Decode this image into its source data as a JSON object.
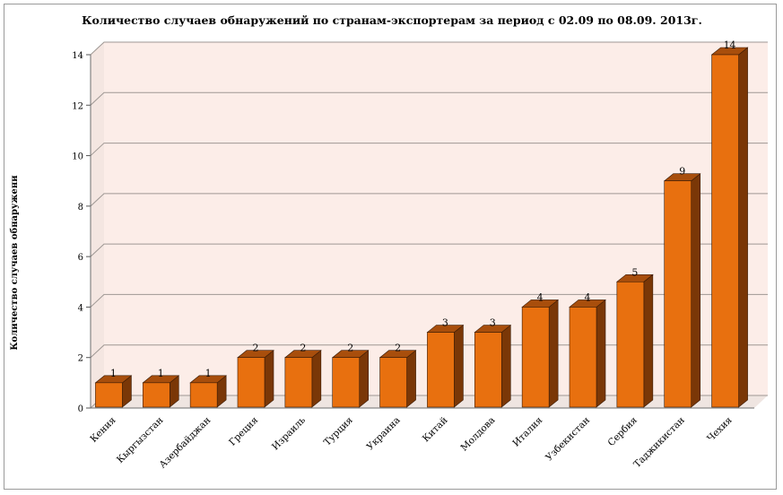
{
  "colors": {
    "plot_back": "#FCEDE8",
    "plot_floor": "#EFE5E1",
    "plot_side": "#F4E6E1",
    "grid": "#9E9793",
    "bar_front": "#E8700F",
    "bar_top": "#A84E0C",
    "bar_side": "#7A3707",
    "bar_edge": "#3A1A04"
  },
  "chart_data": {
    "type": "bar",
    "title": "Количество случаев обнаружений по странам-экспортерам за период с 02.09 по 08.09. 2013г.",
    "xlabel": "",
    "ylabel": "Количество случаев обнаружени",
    "ylim": [
      0,
      14
    ],
    "y_ticks": [
      "0",
      "2",
      "4",
      "6",
      "8",
      "10",
      "12",
      "14"
    ],
    "grid": true,
    "legend": "none",
    "style": "3d-column",
    "categories": [
      "Кения",
      "Кыргызстан",
      "Азербайджан",
      "Греция",
      "Израиль",
      "Турция",
      "Украина",
      "Китай",
      "Молдова",
      "Италия",
      "Узбекистан",
      "Сербия",
      "Таджикистан",
      "Чехия"
    ],
    "values": [
      1,
      1,
      1,
      2,
      2,
      2,
      2,
      3,
      3,
      4,
      4,
      5,
      9,
      14
    ],
    "data_labels": [
      "1",
      "1",
      "1",
      "2",
      "2",
      "2",
      "2",
      "3",
      "3",
      "4",
      "4",
      "5",
      "9",
      "14"
    ]
  }
}
